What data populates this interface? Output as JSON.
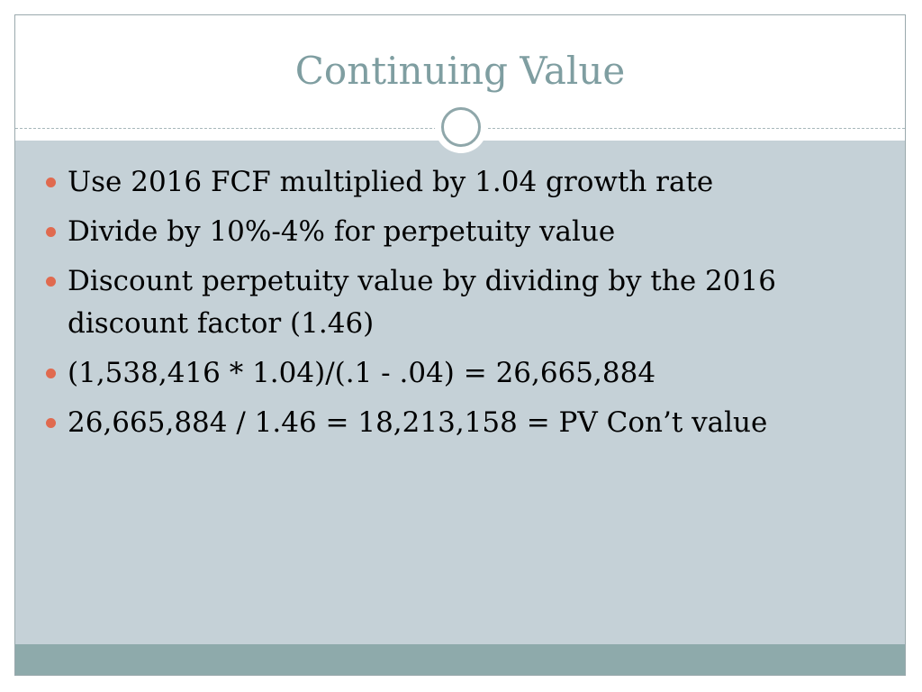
{
  "slide": {
    "title": "Continuing Value",
    "bullets": [
      "Use 2016 FCF multiplied by 1.04 growth rate",
      "Divide by 10%-4% for perpetuity value",
      "Discount perpetuity value by dividing by the 2016 discount factor (1.46)",
      "(1,538,416 * 1.04)/(.1 - .04) = 26,665,884",
      "26,665,884 / 1.46 = 18,213,158 = PV Con’t value"
    ]
  },
  "colors": {
    "title": "#7f9ea1",
    "body_background": "#c5d1d7",
    "footer_bar": "#8eaaab",
    "bullet": "#e06a4f",
    "ornament_ring": "#8fa7aa"
  },
  "icons": {
    "ornament": "circle-ring-icon",
    "bullet": "bullet-dot-icon"
  }
}
